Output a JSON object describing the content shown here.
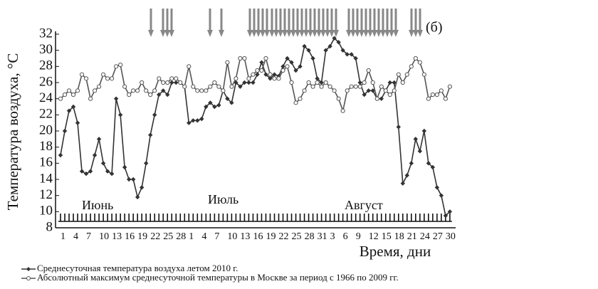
{
  "chart_data": {
    "type": "line",
    "annotation": "(б)",
    "month_labels": [
      "Июнь",
      "Июль",
      "Август"
    ],
    "xlabel": "Время, дни",
    "ylabel": "Температура воздуха, °C",
    "categories": [
      "1",
      null,
      null,
      "4",
      null,
      null,
      "7",
      null,
      null,
      "10",
      null,
      null,
      "13",
      null,
      null,
      "16",
      null,
      null,
      "19",
      null,
      null,
      "22",
      null,
      null,
      "25",
      null,
      null,
      "28",
      null,
      null,
      "1",
      null,
      null,
      "4",
      null,
      null,
      "7",
      null,
      null,
      "10",
      null,
      null,
      "13",
      null,
      null,
      "16",
      null,
      null,
      "19",
      null,
      null,
      "22",
      null,
      null,
      "25",
      null,
      null,
      "28",
      null,
      null,
      "31",
      null,
      null,
      "3",
      null,
      null,
      "6",
      null,
      null,
      "9",
      null,
      null,
      "12",
      null,
      null,
      "15",
      null,
      null,
      "18",
      null,
      null,
      "21",
      null,
      null,
      "24",
      null,
      null,
      "27",
      null,
      null,
      "30",
      null
    ],
    "ylim": [
      8,
      32
    ],
    "yticks": [
      8,
      10,
      12,
      14,
      16,
      18,
      20,
      22,
      24,
      26,
      28,
      30,
      32
    ],
    "series": [
      {
        "name": "Среднесуточная температура воздуха летом 2010 г.",
        "color": "#333333",
        "marker": "diamond",
        "values": [
          17,
          20,
          22.5,
          23,
          21,
          15,
          14.7,
          15,
          17,
          19,
          16,
          15,
          14.7,
          24,
          22,
          15.5,
          14,
          14,
          11.8,
          13,
          16,
          19.5,
          22,
          24.5,
          25,
          24.5,
          26,
          26,
          26,
          25.5,
          21,
          21.3,
          21.3,
          21.5,
          23,
          23.5,
          23,
          23.2,
          25,
          24,
          23.5,
          26,
          25.5,
          26,
          26,
          26,
          27,
          28.5,
          27,
          26.5,
          27,
          26.8,
          28,
          29,
          28.5,
          27.5,
          28,
          30.5,
          30,
          29,
          26.5,
          26,
          30,
          30.5,
          31.5,
          31,
          30,
          29.5,
          29.5,
          29,
          26,
          24.5,
          25,
          25,
          24,
          24,
          25,
          26,
          26,
          20.5,
          13.5,
          14.5,
          16,
          19,
          17.5,
          20,
          16,
          15.5,
          13,
          12,
          9.5,
          10
        ]
      },
      {
        "name": "Абсолютный максимум среднесуточной температуры в Москве за период с 1966 по 2009 гг.",
        "color": "#555555",
        "marker": "circle",
        "values": [
          24,
          24.5,
          25,
          24.5,
          25,
          27,
          26.5,
          24,
          25,
          25.5,
          27,
          26.5,
          26.5,
          28,
          28.2,
          25.5,
          24.5,
          25,
          25,
          26,
          25,
          24.5,
          25,
          26.5,
          26,
          26,
          26.5,
          26.5,
          26,
          25.5,
          28,
          25.5,
          25,
          25,
          25,
          25.5,
          26,
          25.5,
          25,
          28.5,
          25.5,
          26.5,
          29,
          29,
          26.5,
          27,
          27.5,
          27.5,
          29,
          27,
          26.5,
          26.5,
          27.5,
          28,
          26,
          23.5,
          24,
          25,
          26,
          25.5,
          26,
          25.5,
          26,
          25.5,
          25,
          24,
          22.5,
          25,
          25.5,
          25.5,
          25.5,
          26,
          27.5,
          26,
          24,
          25.5,
          25,
          24.5,
          25,
          27,
          26,
          27,
          28,
          29,
          28.5,
          27,
          24,
          24.5,
          24.5,
          25,
          24,
          25.5
        ]
      }
    ]
  }
}
